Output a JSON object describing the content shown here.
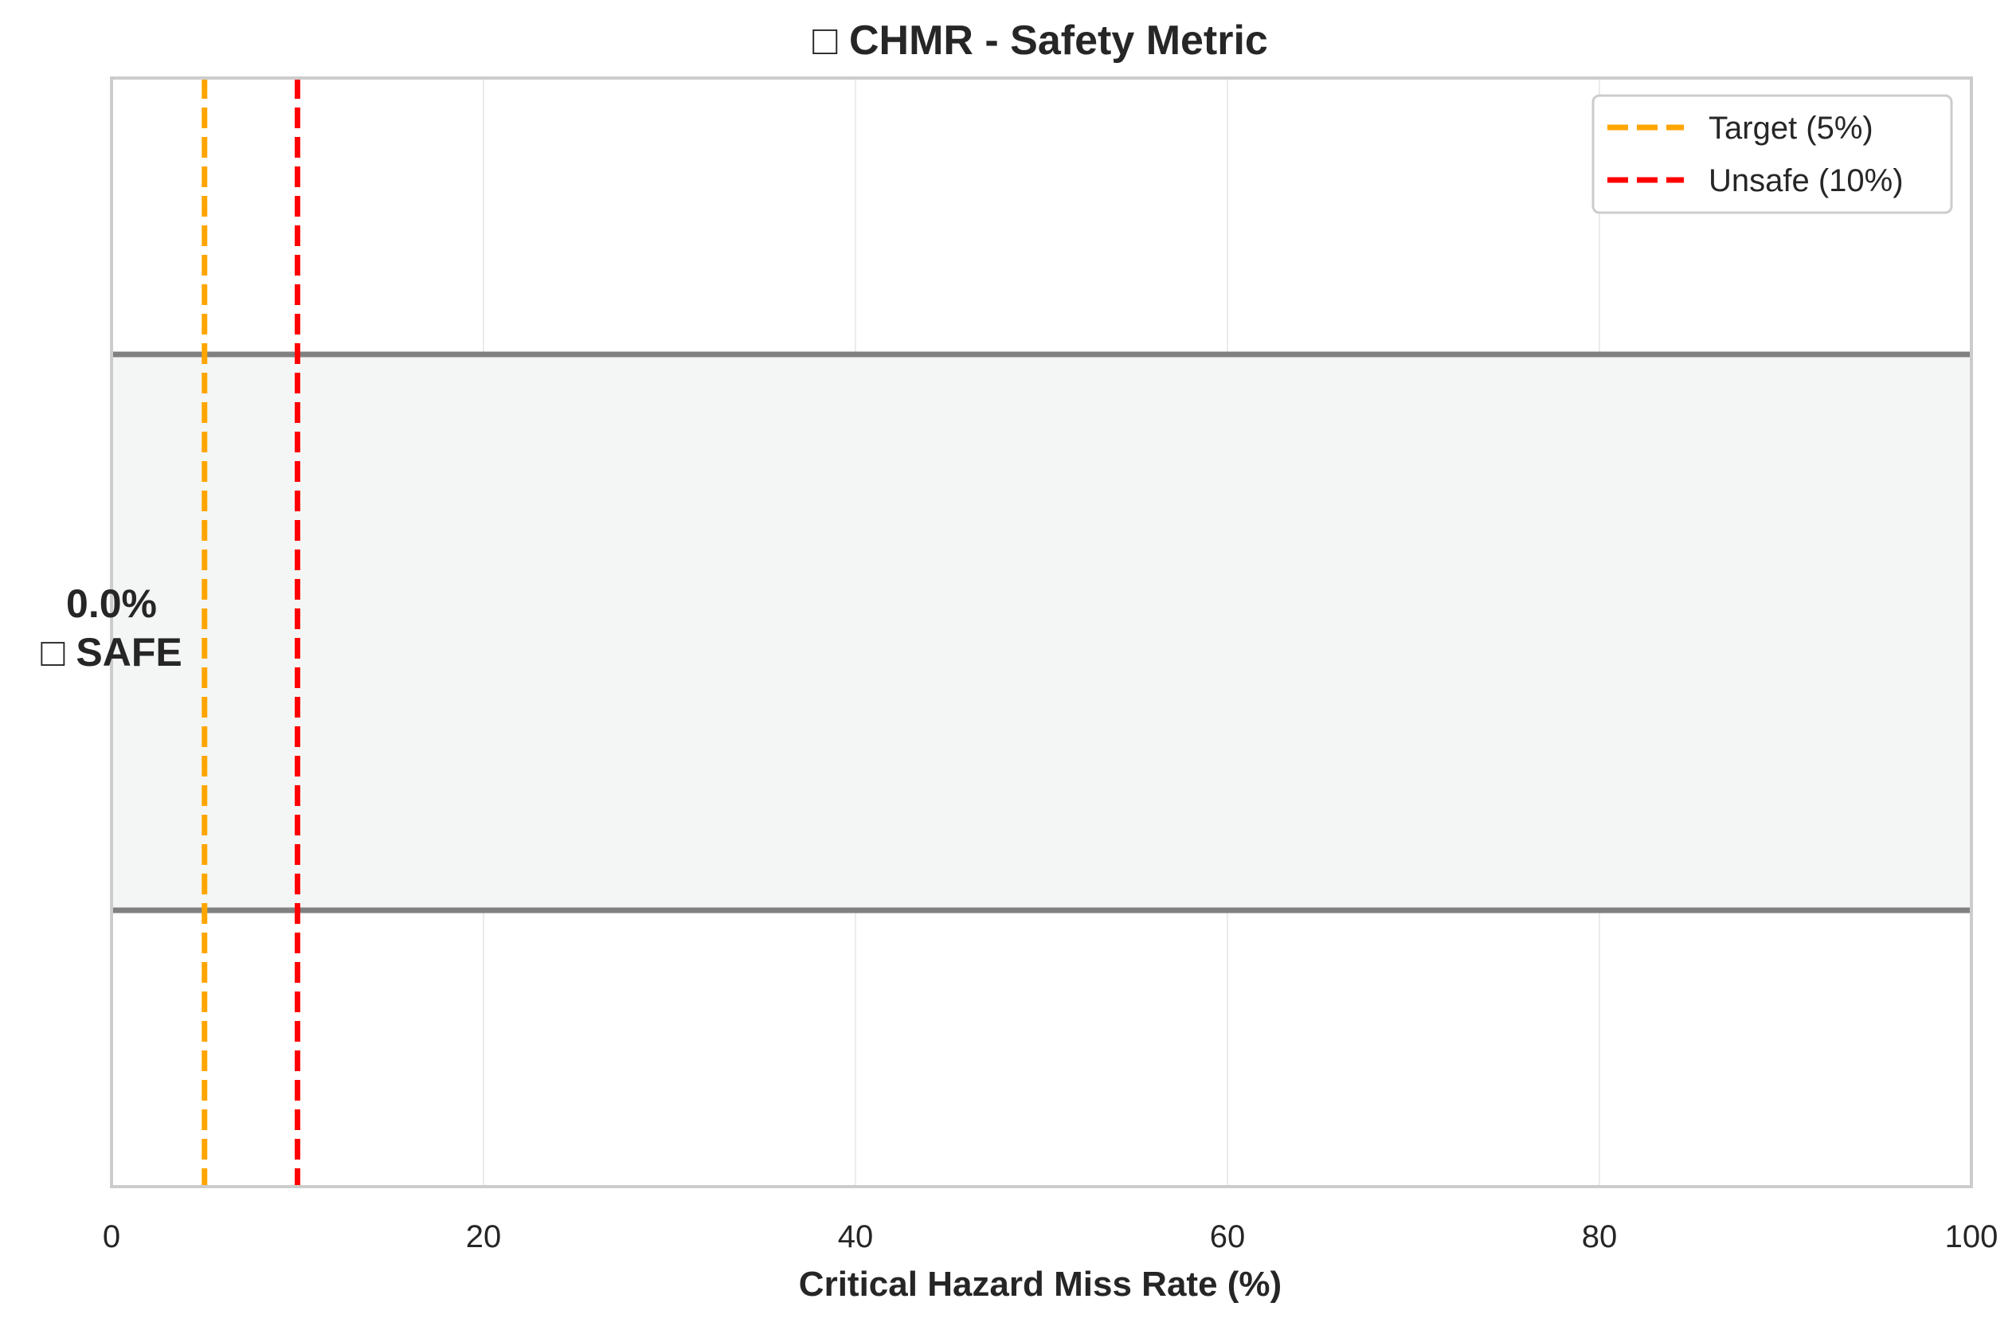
{
  "chart_data": {
    "type": "bar",
    "orientation": "horizontal",
    "title": "□ CHMR - Safety Metric",
    "xlabel": "Critical Hazard Miss Rate (%)",
    "ylabel": "",
    "xlim": [
      0,
      100
    ],
    "x_ticks": [
      0,
      20,
      40,
      60,
      80,
      100
    ],
    "x_tick_labels": [
      "0",
      "20",
      "40",
      "60",
      "80",
      "100"
    ],
    "grid": "vertical",
    "value": 0.0,
    "background_band": {
      "from": 0,
      "to": 100
    },
    "bar_label": {
      "value_text": "0.0%",
      "status_text": "□ SAFE"
    },
    "reference_lines": [
      {
        "name": "Target (5%)",
        "x": 5,
        "color": "#ffa500",
        "style": "dashed"
      },
      {
        "name": "Unsafe (10%)",
        "x": 10,
        "color": "#ff0000",
        "style": "dashed"
      }
    ],
    "legend": {
      "placement": "top-right",
      "entries": [
        "Target (5%)",
        "Unsafe (10%)"
      ]
    }
  },
  "colors": {
    "band_fill": "#f4f6f5",
    "band_edge": "#808080",
    "grid": "#ebebeb",
    "spine": "#cccccc",
    "text": "#262626"
  }
}
